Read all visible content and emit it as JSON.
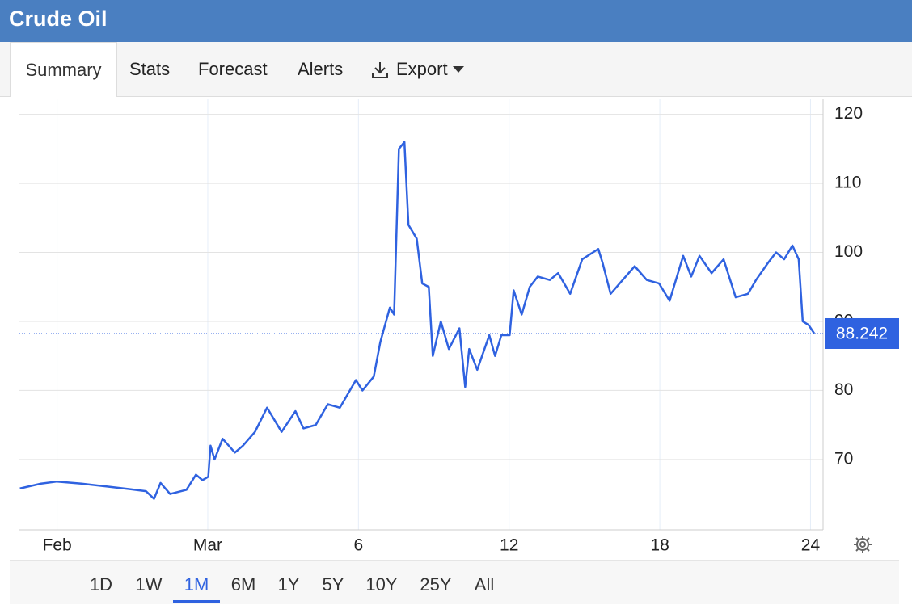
{
  "header": {
    "title": "Crude Oil"
  },
  "tabs": [
    "Summary",
    "Stats",
    "Forecast",
    "Alerts",
    "Export"
  ],
  "active_tab": "Summary",
  "ranges": [
    "1D",
    "1W",
    "1M",
    "6M",
    "1Y",
    "5Y",
    "10Y",
    "25Y",
    "All"
  ],
  "active_range": "1M",
  "chart_data": {
    "type": "line",
    "x": [
      -1.48,
      -0.64,
      0,
      0.97,
      1.93,
      2.9,
      3.54,
      3.86,
      4.12,
      4.5,
      5.15,
      5.53,
      5.79,
      6.02,
      6.11,
      6.27,
      6.59,
      7.08,
      7.4,
      7.88,
      8.36,
      8.94,
      9.49,
      9.81,
      10.3,
      10.78,
      11.26,
      11.9,
      12.16,
      12.61,
      12.87,
      13.25,
      13.42,
      13.61,
      13.83,
      13.99,
      14.32,
      14.54,
      14.8,
      14.96,
      15.28,
      15.6,
      16.02,
      16.25,
      16.41,
      16.73,
      17.21,
      17.44,
      17.69,
      18.02,
      18.18,
      18.5,
      18.82,
      19.14,
      19.62,
      19.95,
      20.43,
      20.91,
      21.55,
      21.72,
      22.04,
      22.52,
      23.0,
      23.48,
      23.97,
      24.39,
      24.93,
      25.25,
      25.58,
      26.06,
      26.54,
      27.02,
      27.51,
      27.83,
      28.31,
      28.63,
      28.95,
      29.28,
      29.53,
      29.69,
      29.92,
      30.15
    ],
    "series": [
      {
        "name": "Crude Oil",
        "color": "#2f62e0",
        "values": [
          65.8,
          66.5,
          66.8,
          66.5,
          66.1,
          65.7,
          65.4,
          64.3,
          66.6,
          65.0,
          65.6,
          67.8,
          67.0,
          67.5,
          72.0,
          70.0,
          73.0,
          71.0,
          72.0,
          74.0,
          77.5,
          74.0,
          77.0,
          74.5,
          75.0,
          78.0,
          77.5,
          81.5,
          80.0,
          82.0,
          87.0,
          92.0,
          91.0,
          115.0,
          116.0,
          104.0,
          102.0,
          95.5,
          95.0,
          85.0,
          90.0,
          86.0,
          89.0,
          80.5,
          86.0,
          83.0,
          88.0,
          85.0,
          88.0,
          88.0,
          94.5,
          91.0,
          95.0,
          96.5,
          96.0,
          97.0,
          94.0,
          99.0,
          100.5,
          98.5,
          94.0,
          96.0,
          98.0,
          96.0,
          95.5,
          93.0,
          99.5,
          96.5,
          99.5,
          97.0,
          99.0,
          93.5,
          94.0,
          96.0,
          98.5,
          100.0,
          99.0,
          101.0,
          99.0,
          90.0,
          89.5,
          88.242
        ]
      }
    ],
    "xlim": [
      -1.5,
      30.5
    ],
    "xticks": [
      {
        "value": 0,
        "label": "Feb"
      },
      {
        "value": 6,
        "label": "Mar"
      },
      {
        "value": 12,
        "label": "6"
      },
      {
        "value": 18,
        "label": "12"
      },
      {
        "value": 24,
        "label": "18"
      },
      {
        "value": 30,
        "label": "24"
      }
    ],
    "ylim": [
      59.8,
      122.3
    ],
    "yticks": [
      70,
      80,
      90,
      100,
      110,
      120
    ],
    "grid": true
  }
}
